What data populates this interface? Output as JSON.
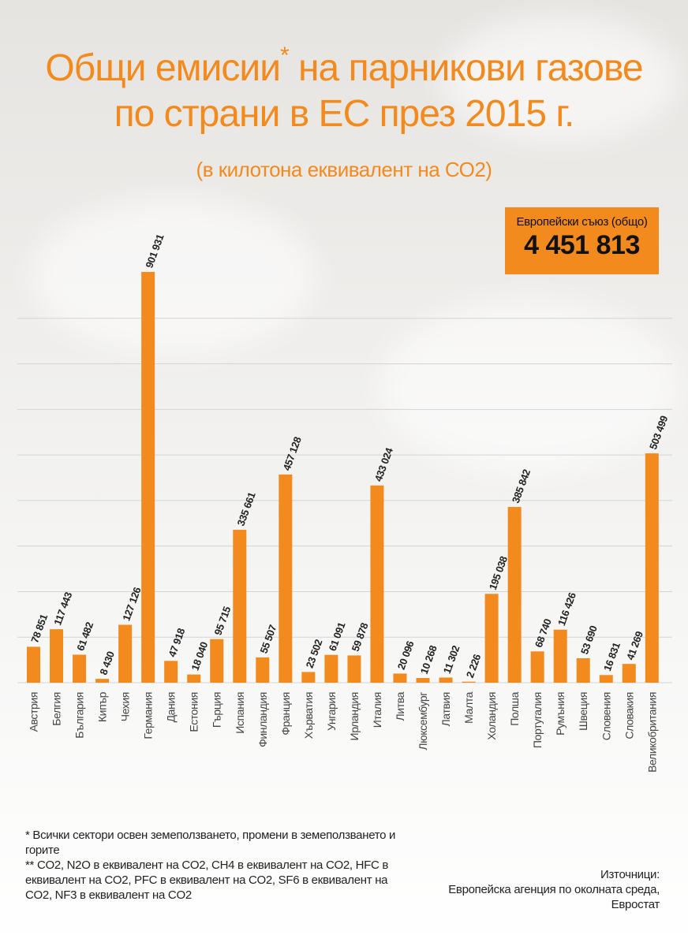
{
  "header": {
    "title_line1": "Общи емисии",
    "title_asterisk": "*",
    "title_line1_rest": " на парникови газове",
    "title_line2": "по страни в ЕС през 2015 г.",
    "subtitle": "(в килотона еквивалент на СО2)"
  },
  "eu_total": {
    "label": "Европейски съюз (общо)",
    "value": "4 451 813"
  },
  "colors": {
    "accent": "#f28a1e",
    "grid": "#d4d4d4",
    "text": "#222222"
  },
  "chart_data": {
    "type": "bar",
    "categories": [
      "Австрия",
      "Белгия",
      "България",
      "Кипър",
      "Чехия",
      "Германия",
      "Дания",
      "Естония",
      "Гърция",
      "Испания",
      "Финландия",
      "Франция",
      "Хърватия",
      "Унгария",
      "Ирландия",
      "Италия",
      "Литва",
      "Люксембург",
      "Латвия",
      "Малта",
      "Холандия",
      "Полша",
      "Португалия",
      "Румъния",
      "Швеция",
      "Словения",
      "Словакия",
      "Великобритания"
    ],
    "values": [
      78851,
      117443,
      61482,
      8430,
      127126,
      901931,
      47918,
      18040,
      95715,
      335661,
      55507,
      457128,
      23502,
      61091,
      59878,
      433024,
      20096,
      10268,
      11302,
      2226,
      195038,
      385842,
      68740,
      116426,
      53690,
      16831,
      41269,
      503499
    ],
    "labels": [
      "78 851",
      "117 443",
      "61 482",
      "8 430",
      "127 126",
      "901 931",
      "47 918",
      "18 040",
      "95 715",
      "335 661",
      "55 507",
      "457 128",
      "23 502",
      "61 091",
      "59 878",
      "433 024",
      "20 096",
      "10 268",
      "11 302",
      "2 226",
      "195 038",
      "385 842",
      "68 740",
      "116 426",
      "53 690",
      "16 831",
      "41 269",
      "503 499"
    ],
    "ylim": [
      0,
      900000
    ],
    "grid": true,
    "gridlines": [
      0,
      100000,
      200000,
      300000,
      400000,
      500000,
      600000,
      700000,
      800000
    ],
    "title": "Общи емисии* на парникови газове по страни в ЕС през 2015 г.",
    "xlabel": "",
    "ylabel": ""
  },
  "footnotes": {
    "note1": "* Всички сектори освен земеползването, промени в земеползването и горите",
    "note2": "** CO2, N2O в еквивалент на CO2, CH4 в еквивалент на CO2, HFC в еквивалент на CO2, PFC в еквивалент на CO2, SF6 в еквивалент на CO2, NF3 в еквивалент на CO2"
  },
  "sources": {
    "heading": "Източници:",
    "line1": "Европейска агенция по околната среда,",
    "line2": "Евростат"
  }
}
